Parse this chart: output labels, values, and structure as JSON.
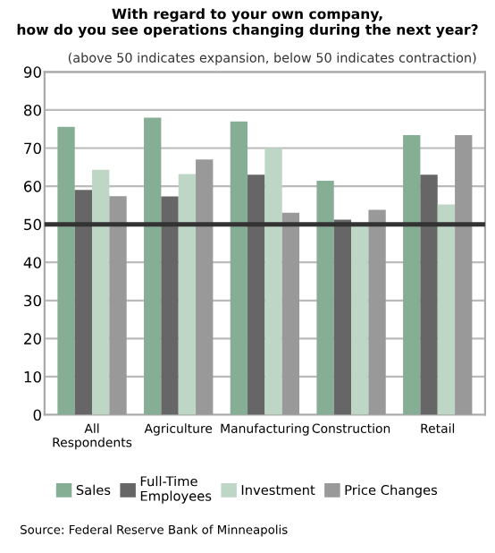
{
  "chart_data": {
    "type": "bar",
    "title": "With regard to your own company,\nhow do you see operations changing during the next year?",
    "subtitle": "(above 50 indicates expansion, below 50 indicates contraction)",
    "categories": [
      "All\nRespondents",
      "Agriculture",
      "Manufacturing",
      "Construction",
      "Retail"
    ],
    "series": [
      {
        "name": "Sales",
        "color": "#86ae94",
        "values": [
          75.6,
          78,
          77,
          61.4,
          73.4
        ]
      },
      {
        "name": "Full-Time\nEmployees",
        "color": "#666666",
        "values": [
          59,
          57.3,
          63,
          51.2,
          63
        ]
      },
      {
        "name": "Investment",
        "color": "#bdd6c6",
        "values": [
          64.3,
          63.2,
          70,
          50.3,
          55.2
        ]
      },
      {
        "name": "Price Changes",
        "color": "#999999",
        "values": [
          57.4,
          67,
          53,
          53.8,
          73.4
        ]
      }
    ],
    "ylim": [
      0,
      90
    ],
    "yticks": [
      0,
      10,
      20,
      30,
      40,
      50,
      60,
      70,
      80,
      90
    ],
    "grid": "y",
    "legend": "bottom",
    "ref_lines": [
      {
        "axis": "y",
        "value": 50,
        "color": "#333333"
      }
    ],
    "annotations": [
      "Source: Federal Reserve Bank of Minneapolis"
    ]
  }
}
